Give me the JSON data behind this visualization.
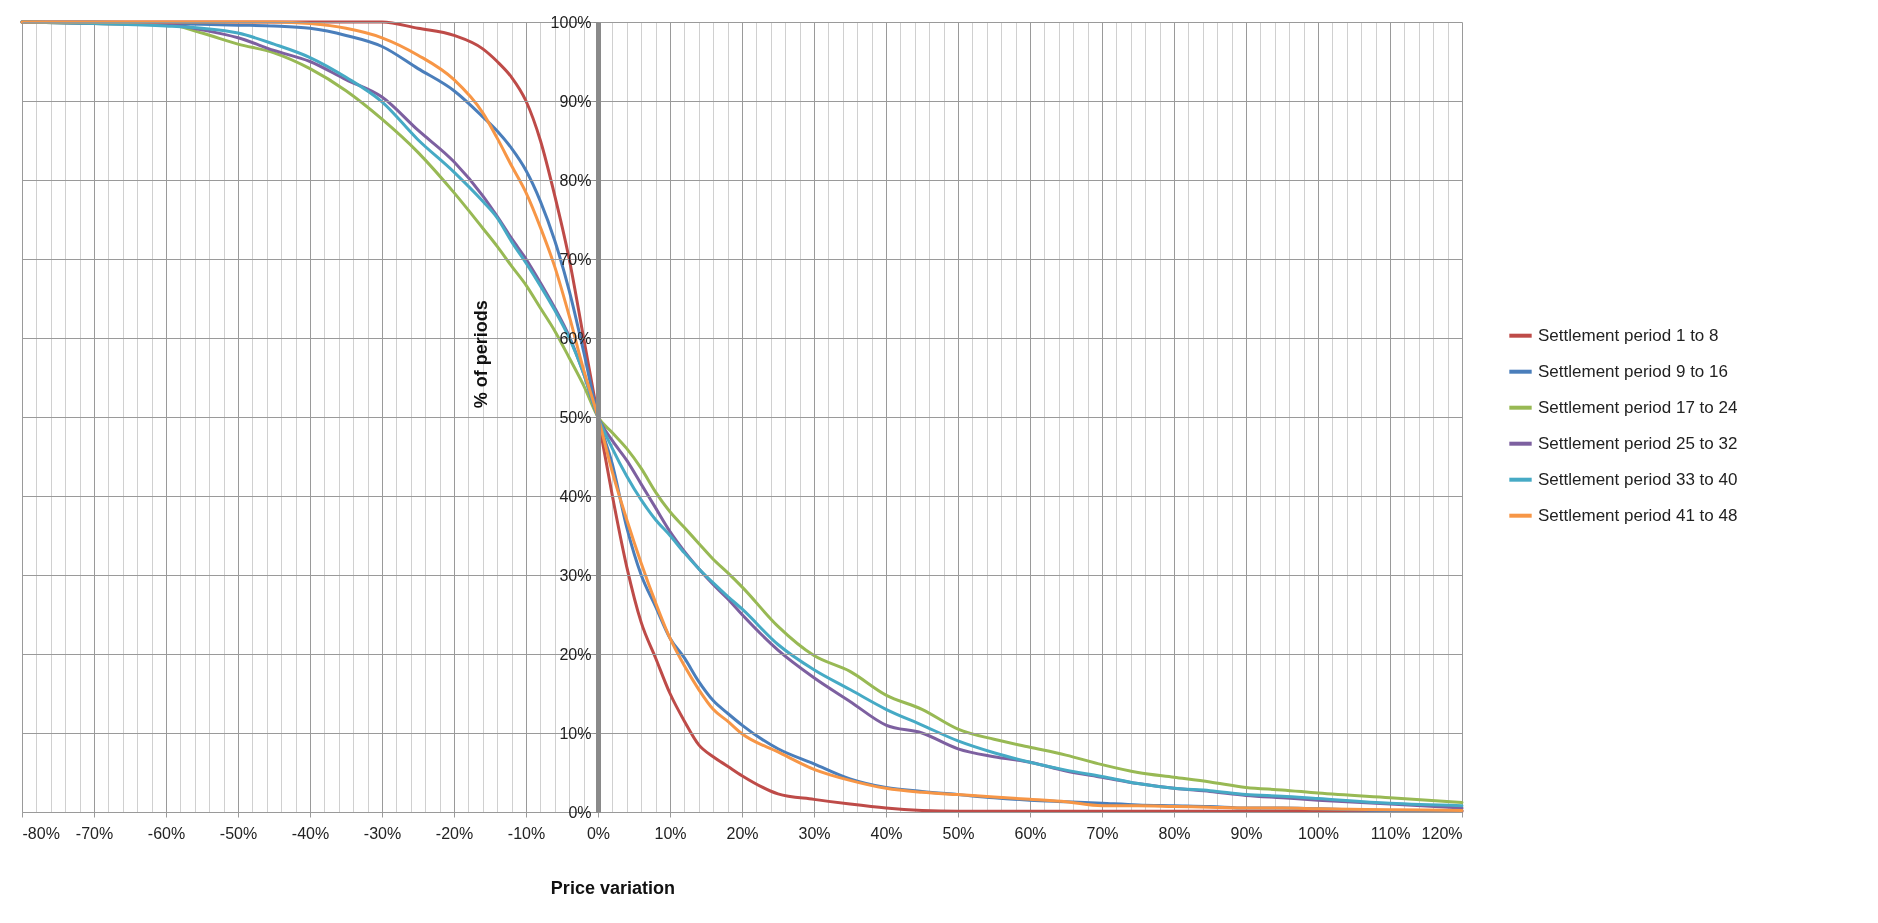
{
  "chart_data": {
    "type": "line",
    "xlabel": "Price variation",
    "ylabel": "% of periods",
    "x": [
      -80,
      -70,
      -60,
      -55,
      -50,
      -45,
      -40,
      -35,
      -30,
      -25,
      -20,
      -16,
      -14,
      -12,
      -10,
      -8,
      -6,
      -4,
      -2,
      0,
      2,
      4,
      6,
      8,
      10,
      12,
      14,
      16,
      18,
      20,
      25,
      30,
      35,
      40,
      45,
      50,
      55,
      60,
      65,
      70,
      75,
      80,
      85,
      90,
      95,
      100,
      110,
      120
    ],
    "series": [
      {
        "name": "Settlement period 1 to 8",
        "color": "#be4b48",
        "values": [
          100,
          100,
          100,
          100,
          100,
          100,
          100,
          100,
          100,
          99.2,
          98.3,
          96.6,
          95,
          93,
          90,
          85,
          78,
          70,
          60,
          50,
          40,
          31,
          24,
          19.5,
          15,
          11.5,
          8.5,
          7,
          5.8,
          4.6,
          2.3,
          1.6,
          1,
          0.5,
          0.2,
          0.1,
          0.1,
          0.1,
          0.1,
          0.1,
          0.1,
          0.1,
          0.1,
          0.1,
          0.1,
          0.1,
          0.1,
          0.1
        ]
      },
      {
        "name": "Settlement period 9 to 16",
        "color": "#4a7ebb",
        "values": [
          100,
          100,
          99.8,
          99.7,
          99.6,
          99.5,
          99.2,
          98.3,
          96.9,
          94.1,
          91.3,
          88,
          86.2,
          84,
          81.2,
          77.3,
          72.3,
          66,
          58.3,
          50,
          44,
          36,
          30,
          26,
          22,
          19.5,
          16.5,
          14.1,
          12.5,
          11,
          8,
          6.1,
          4.2,
          3.1,
          2.6,
          2.2,
          1.8,
          1.5,
          1.3,
          1.1,
          0.9,
          0.8,
          0.7,
          0.5,
          0.5,
          0.4,
          0.2,
          0.15
        ]
      },
      {
        "name": "Settlement period 17 to 24",
        "color": "#98b954",
        "values": [
          100,
          99.8,
          99.7,
          98.6,
          97.2,
          96.1,
          94.1,
          91.3,
          87.7,
          83.5,
          78.4,
          73.9,
          71.6,
          69.1,
          66.7,
          63.8,
          60.9,
          57.5,
          54,
          50,
          48,
          46,
          43.5,
          40.5,
          38,
          36,
          34,
          32,
          30.3,
          28.5,
          23.5,
          19.8,
          17.8,
          14.8,
          13,
          10.5,
          9.2,
          8.2,
          7.2,
          6,
          5,
          4.4,
          3.8,
          3.1,
          2.8,
          2.4,
          1.8,
          1.2
        ]
      },
      {
        "name": "Settlement period 25 to 32",
        "color": "#7d60a0",
        "values": [
          100,
          99.8,
          99.7,
          99,
          98,
          96.4,
          95,
          92.7,
          90.5,
          86.3,
          82.3,
          78,
          75.4,
          72.6,
          70,
          67,
          63.8,
          60.2,
          55.5,
          50,
          47,
          44.5,
          41.5,
          38.5,
          35.5,
          33,
          30.8,
          28.8,
          27,
          25,
          20.5,
          17,
          14,
          11,
          10,
          8,
          7,
          6.3,
          5.2,
          4.4,
          3.6,
          3,
          2.6,
          2.1,
          1.8,
          1.5,
          1,
          0.5
        ]
      },
      {
        "name": "Settlement period 33 to 40",
        "color": "#46aac5",
        "values": [
          100,
          99.8,
          99.5,
          99.2,
          98.6,
          97.2,
          95.5,
          93,
          89.9,
          85.1,
          81,
          77.3,
          75.2,
          72.2,
          69.5,
          66.6,
          63.5,
          60,
          55.5,
          50,
          46,
          42.5,
          39.5,
          37,
          35,
          32.8,
          30.8,
          29,
          27.3,
          25.7,
          21.2,
          18,
          15.5,
          13,
          11,
          9,
          7.5,
          6.3,
          5.3,
          4.5,
          3.6,
          3,
          2.7,
          2.2,
          2,
          1.7,
          1.1,
          0.8
        ]
      },
      {
        "name": "Settlement period 41 to 48",
        "color": "#f79646",
        "values": [
          100,
          100,
          100,
          100,
          100,
          100,
          99.8,
          99.2,
          98,
          95.8,
          92.7,
          88.5,
          85.3,
          81.8,
          78.4,
          74,
          69,
          62.8,
          56,
          50,
          43,
          37,
          31.5,
          26.5,
          22,
          18.5,
          15.5,
          13,
          11.5,
          9.9,
          7.6,
          5.4,
          4,
          3,
          2.5,
          2.2,
          1.9,
          1.6,
          1.3,
          0.8,
          0.8,
          0.7,
          0.6,
          0.5,
          0.5,
          0.4,
          0.3,
          0.2
        ]
      }
    ],
    "xlim": [
      -80,
      120
    ],
    "xticks": [
      {
        "value": -80,
        "label": "-80%"
      },
      {
        "value": -70,
        "label": "-70%"
      },
      {
        "value": -60,
        "label": "-60%"
      },
      {
        "value": -50,
        "label": "-50%"
      },
      {
        "value": -40,
        "label": "-40%"
      },
      {
        "value": -30,
        "label": "-30%"
      },
      {
        "value": -20,
        "label": "-20%"
      },
      {
        "value": -10,
        "label": "-10%"
      },
      {
        "value": 0,
        "label": "0%"
      },
      {
        "value": 10,
        "label": "10%"
      },
      {
        "value": 20,
        "label": "20%"
      },
      {
        "value": 30,
        "label": "30%"
      },
      {
        "value": 40,
        "label": "40%"
      },
      {
        "value": 50,
        "label": "50%"
      },
      {
        "value": 60,
        "label": "60%"
      },
      {
        "value": 70,
        "label": "70%"
      },
      {
        "value": 80,
        "label": "80%"
      },
      {
        "value": 90,
        "label": "90%"
      },
      {
        "value": 100,
        "label": "100%"
      },
      {
        "value": 110,
        "label": "110%"
      },
      {
        "value": 120,
        "label": "120%"
      }
    ],
    "ylim": [
      0,
      100
    ],
    "yticks": [
      {
        "value": 0,
        "label": "0%"
      },
      {
        "value": 10,
        "label": "10%"
      },
      {
        "value": 20,
        "label": "20%"
      },
      {
        "value": 30,
        "label": "30%"
      },
      {
        "value": 40,
        "label": "40%"
      },
      {
        "value": 50,
        "label": "50%"
      },
      {
        "value": 60,
        "label": "60%"
      },
      {
        "value": 70,
        "label": "70%"
      },
      {
        "value": 80,
        "label": "80%"
      },
      {
        "value": 90,
        "label": "90%"
      },
      {
        "value": 100,
        "label": "100%"
      }
    ],
    "grid": true,
    "legend": "right",
    "marker": "none",
    "line_style": "solid"
  }
}
